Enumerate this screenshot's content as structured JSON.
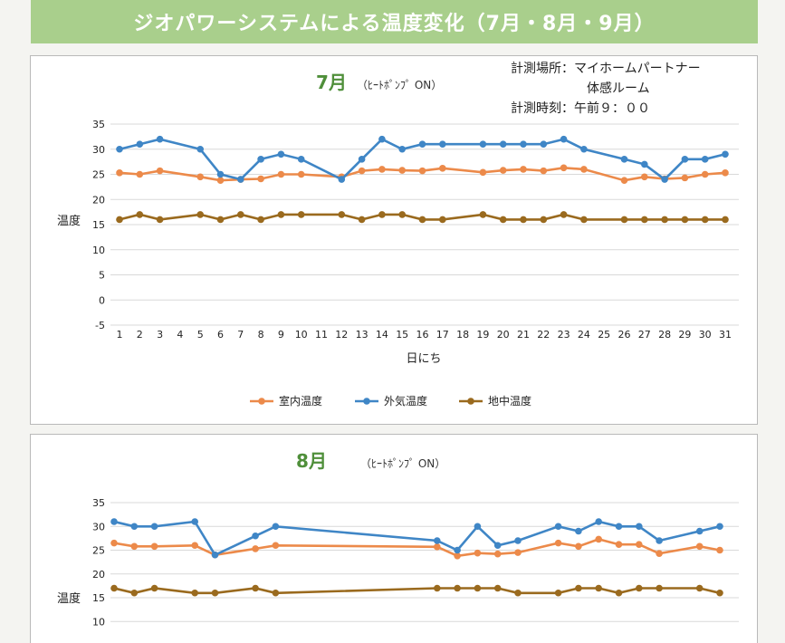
{
  "banner": {
    "title": "ジオパワーシステムによる温度変化（7月・8月・9月）"
  },
  "legend_colors": {
    "indoor": "#ec8a4a",
    "outdoor": "#3f86c6",
    "ground": "#9a6a1e"
  },
  "chart_data": [
    {
      "type": "line",
      "title": "7月",
      "subtitle": "（ﾋｰﾄﾎﾟﾝﾌﾟ ON）",
      "info_lines": [
        "計測場所：マイホームパートナー",
        "体感ルーム",
        "計測時刻：午前９：００"
      ],
      "xlabel": "日にち",
      "ylabel": "温度",
      "ylim": [
        -5,
        35
      ],
      "yticks": [
        "35",
        "30",
        "25",
        "20",
        "15",
        "10",
        "5",
        "0",
        "-5"
      ],
      "x": [
        "1",
        "2",
        "3",
        "4",
        "5",
        "6",
        "7",
        "8",
        "9",
        "10",
        "11",
        "12",
        "13",
        "14",
        "15",
        "16",
        "17",
        "18",
        "19",
        "20",
        "21",
        "22",
        "23",
        "24",
        "25",
        "26",
        "27",
        "28",
        "29",
        "30",
        "31"
      ],
      "series": [
        {
          "name": "室内温度",
          "points": [
            [
              1,
              25.3
            ],
            [
              2,
              25
            ],
            [
              3,
              25.7
            ],
            [
              5,
              24.5
            ],
            [
              6,
              23.8
            ],
            [
              7,
              24
            ],
            [
              8,
              24.1
            ],
            [
              9,
              25
            ],
            [
              10,
              25
            ],
            [
              12,
              24.5
            ],
            [
              13,
              25.7
            ],
            [
              14,
              26
            ],
            [
              15,
              25.8
            ],
            [
              16,
              25.7
            ],
            [
              17,
              26.2
            ],
            [
              19,
              25.4
            ],
            [
              20,
              25.8
            ],
            [
              21,
              26
            ],
            [
              22,
              25.7
            ],
            [
              23,
              26.3
            ],
            [
              24,
              26
            ],
            [
              26,
              23.8
            ],
            [
              27,
              24.5
            ],
            [
              28,
              24.1
            ],
            [
              29,
              24.3
            ],
            [
              30,
              25
            ],
            [
              31,
              25.3
            ]
          ]
        },
        {
          "name": "外気温度",
          "points": [
            [
              1,
              30
            ],
            [
              2,
              31
            ],
            [
              3,
              32
            ],
            [
              5,
              30
            ],
            [
              6,
              25
            ],
            [
              7,
              24
            ],
            [
              8,
              28
            ],
            [
              9,
              29
            ],
            [
              10,
              28
            ],
            [
              12,
              24
            ],
            [
              13,
              28
            ],
            [
              14,
              32
            ],
            [
              15,
              30
            ],
            [
              16,
              31
            ],
            [
              17,
              31
            ],
            [
              19,
              31
            ],
            [
              20,
              31
            ],
            [
              21,
              31
            ],
            [
              22,
              31
            ],
            [
              23,
              32
            ],
            [
              24,
              30
            ],
            [
              26,
              28
            ],
            [
              27,
              27
            ],
            [
              28,
              24
            ],
            [
              29,
              28
            ],
            [
              30,
              28
            ],
            [
              31,
              29
            ]
          ]
        },
        {
          "name": "地中温度",
          "points": [
            [
              1,
              16
            ],
            [
              2,
              17
            ],
            [
              3,
              16
            ],
            [
              5,
              17
            ],
            [
              6,
              16
            ],
            [
              7,
              17
            ],
            [
              8,
              16
            ],
            [
              9,
              17
            ],
            [
              10,
              17
            ],
            [
              12,
              17
            ],
            [
              13,
              16
            ],
            [
              14,
              17
            ],
            [
              15,
              17
            ],
            [
              16,
              16
            ],
            [
              17,
              16
            ],
            [
              19,
              17
            ],
            [
              20,
              16
            ],
            [
              21,
              16
            ],
            [
              22,
              16
            ],
            [
              23,
              17
            ],
            [
              24,
              16
            ],
            [
              26,
              16
            ],
            [
              27,
              16
            ],
            [
              28,
              16
            ],
            [
              29,
              16
            ],
            [
              30,
              16
            ],
            [
              31,
              16
            ]
          ]
        }
      ],
      "legend_position": "bottom"
    },
    {
      "type": "line",
      "title": "8月",
      "subtitle": "（ﾋｰﾄﾎﾟﾝﾌﾟ ON）",
      "ylabel": "温度",
      "yticks": [
        "35",
        "30",
        "25",
        "20",
        "15",
        "10"
      ],
      "ylim": [
        -5,
        35
      ],
      "series": [
        {
          "name": "室内温度",
          "points": [
            [
              1,
              26.5
            ],
            [
              2,
              25.8
            ],
            [
              3,
              25.8
            ],
            [
              5,
              26
            ],
            [
              6,
              24
            ],
            [
              8,
              25.3
            ],
            [
              9,
              26
            ],
            [
              17,
              25.7
            ],
            [
              18,
              23.8
            ],
            [
              19,
              24.4
            ],
            [
              20,
              24.2
            ],
            [
              21,
              24.5
            ],
            [
              23,
              26.5
            ],
            [
              24,
              25.8
            ],
            [
              25,
              27.3
            ],
            [
              26,
              26.2
            ],
            [
              27,
              26.2
            ],
            [
              28,
              24.3
            ],
            [
              30,
              25.8
            ],
            [
              31,
              25
            ]
          ]
        },
        {
          "name": "外気温度",
          "points": [
            [
              1,
              31
            ],
            [
              2,
              30
            ],
            [
              3,
              30
            ],
            [
              5,
              31
            ],
            [
              6,
              24
            ],
            [
              8,
              28
            ],
            [
              9,
              30
            ],
            [
              17,
              27
            ],
            [
              18,
              25
            ],
            [
              19,
              30
            ],
            [
              20,
              26
            ],
            [
              21,
              27
            ],
            [
              23,
              30
            ],
            [
              24,
              29
            ],
            [
              25,
              31
            ],
            [
              26,
              30
            ],
            [
              27,
              30
            ],
            [
              28,
              27
            ],
            [
              30,
              29
            ],
            [
              31,
              30
            ]
          ]
        },
        {
          "name": "地中温度",
          "points": [
            [
              1,
              17
            ],
            [
              2,
              16
            ],
            [
              3,
              17
            ],
            [
              5,
              16
            ],
            [
              6,
              16
            ],
            [
              8,
              17
            ],
            [
              9,
              16
            ],
            [
              17,
              17
            ],
            [
              18,
              17
            ],
            [
              19,
              17
            ],
            [
              20,
              17
            ],
            [
              21,
              16
            ],
            [
              23,
              16
            ],
            [
              24,
              17
            ],
            [
              25,
              17
            ],
            [
              26,
              16
            ],
            [
              27,
              17
            ],
            [
              28,
              17
            ],
            [
              30,
              17
            ],
            [
              31,
              16
            ]
          ]
        }
      ]
    }
  ]
}
